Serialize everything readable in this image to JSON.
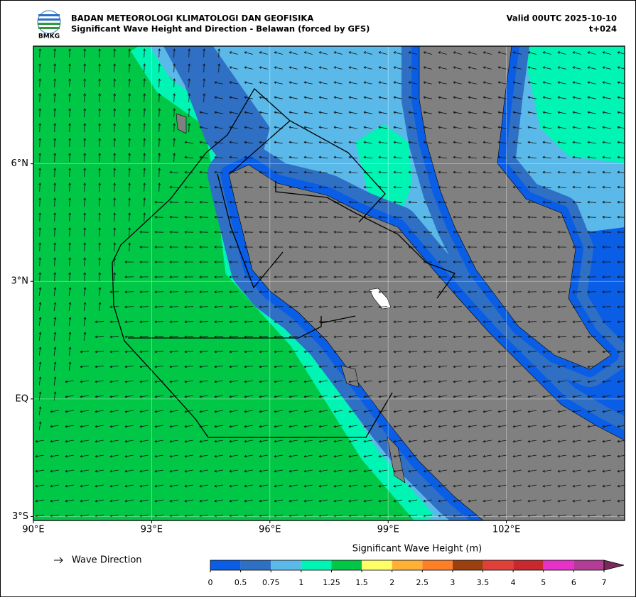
{
  "header": {
    "agency": "BADAN METEOROLOGI KLIMATOLOGI DAN GEOFISIKA",
    "title": "Significant Wave Height and Direction - Belawan (forced by GFS)",
    "valid": "Valid 00UTC 2025-10-10",
    "lead": "t+024",
    "logo_text": "BMKG"
  },
  "map": {
    "lon_range": [
      90,
      105
    ],
    "lat_range": [
      -3.1,
      9
    ],
    "xticks": [
      {
        "value": 90,
        "label": "90°E"
      },
      {
        "value": 93,
        "label": "93°E"
      },
      {
        "value": 96,
        "label": "96°E"
      },
      {
        "value": 99,
        "label": "99°E"
      },
      {
        "value": 102,
        "label": "102°E"
      }
    ],
    "yticks": [
      {
        "value": 6,
        "label": "6°N"
      },
      {
        "value": 3,
        "label": "3°N"
      },
      {
        "value": 0,
        "label": "EQ"
      },
      {
        "value": -3,
        "label": "3°S"
      }
    ],
    "grid": true
  },
  "legend": {
    "label": "Wave Direction"
  },
  "colorbar": {
    "title": "Significant Wave Height (m)",
    "levels": [
      0,
      0.5,
      0.75,
      1,
      1.25,
      1.5,
      2,
      2.5,
      3,
      3.5,
      4,
      5,
      6,
      7
    ],
    "colors": [
      "#0a5ee6",
      "#2f70c4",
      "#5ab9e8",
      "#00f5b4",
      "#00c846",
      "#ffff66",
      "#ffb035",
      "#ff7f27",
      "#9c4010",
      "#e0403a",
      "#c8282e",
      "#e632c8",
      "#b43c96"
    ],
    "extend_color": "#7a2a5a"
  }
}
